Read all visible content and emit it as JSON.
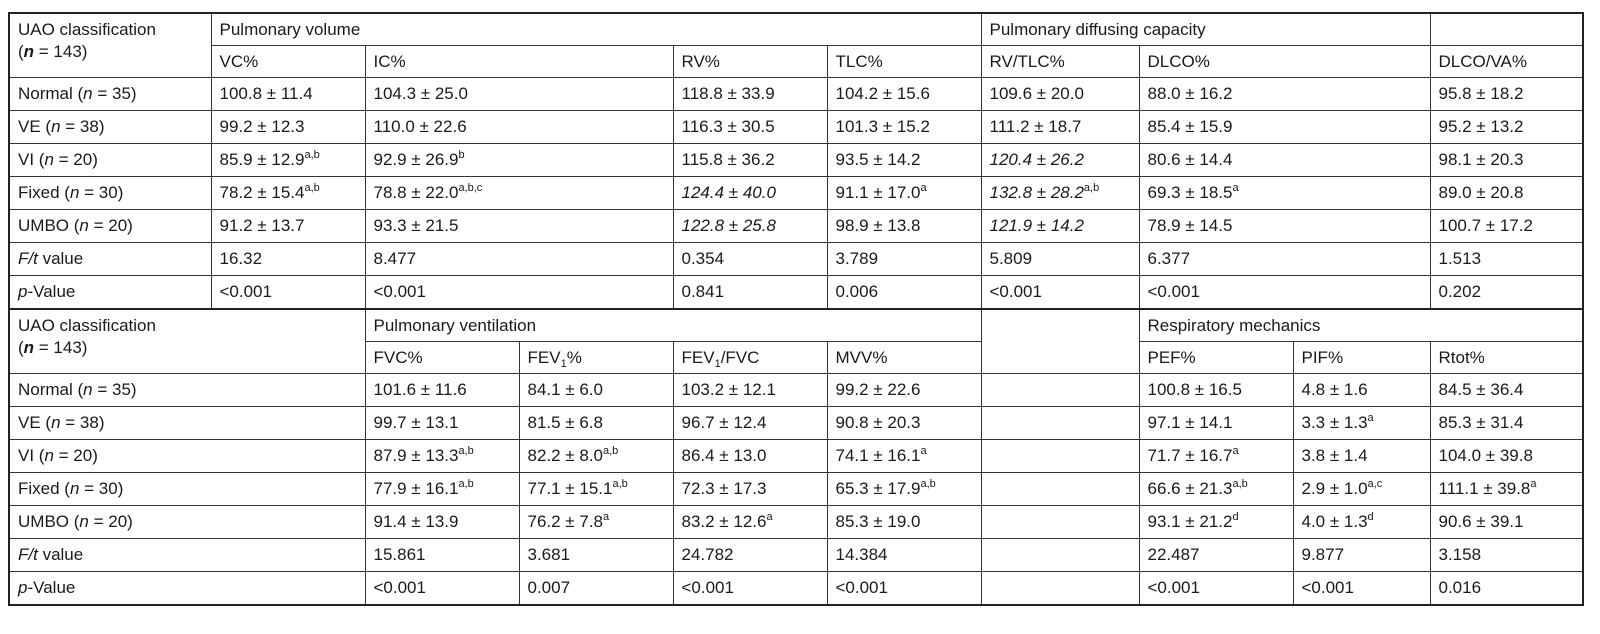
{
  "table1": {
    "corner_label": "UAO classification",
    "corner_n_pre": "(",
    "corner_n_var": "n",
    "corner_n_post": " = 143)",
    "group_volume": "Pulmonary volume",
    "group_diffusing": "Pulmonary diffusing capacity",
    "columns": [
      "VC%",
      "IC%",
      "RV%",
      "TLC%",
      "RV/TLC%",
      "DLCO%",
      "DLCO/VA%"
    ],
    "rows": [
      {
        "name": "Normal (",
        "n": "n",
        "count": " = 35)",
        "cells": [
          {
            "v": "100.8 ± 11.4"
          },
          {
            "v": "104.3 ± 25.0"
          },
          {
            "v": "118.8 ± 33.9"
          },
          {
            "v": "104.2 ± 15.6"
          },
          {
            "v": "109.6 ± 20.0"
          },
          {
            "v": "88.0 ± 16.2"
          },
          {
            "v": "95.8 ± 18.2"
          }
        ]
      },
      {
        "name": "VE (",
        "n": "n",
        "count": " = 38)",
        "cells": [
          {
            "v": "99.2 ± 12.3"
          },
          {
            "v": "110.0 ± 22.6"
          },
          {
            "v": "116.3 ± 30.5"
          },
          {
            "v": "101.3 ± 15.2"
          },
          {
            "v": "111.2 ± 18.7"
          },
          {
            "v": "85.4 ± 15.9"
          },
          {
            "v": "95.2 ± 13.2"
          }
        ]
      },
      {
        "name": "VI (",
        "n": "n",
        "count": " = 20)",
        "cells": [
          {
            "v": "85.9 ± 12.9",
            "sup": "a,b"
          },
          {
            "v": "92.9 ± 26.9",
            "sup": "b"
          },
          {
            "v": "115.8 ± 36.2"
          },
          {
            "v": "93.5 ± 14.2"
          },
          {
            "v": "120.4 ± 26.2",
            "italic": true
          },
          {
            "v": "80.6 ± 14.4"
          },
          {
            "v": "98.1 ± 20.3"
          }
        ]
      },
      {
        "name": "Fixed (",
        "n": "n",
        "count": " = 30)",
        "cells": [
          {
            "v": "78.2 ± 15.4",
            "sup": "a,b"
          },
          {
            "v": "78.8 ± 22.0",
            "sup": "a,b,c"
          },
          {
            "v": "124.4 ± 40.0",
            "italic": true
          },
          {
            "v": "91.1 ± 17.0",
            "sup": "a"
          },
          {
            "v": "132.8 ± 28.2",
            "italic": true,
            "sup": "a,b"
          },
          {
            "v": "69.3 ± 18.5",
            "sup": "a"
          },
          {
            "v": "89.0 ± 20.8"
          }
        ]
      },
      {
        "name": "UMBO (",
        "n": "n",
        "count": " = 20)",
        "cells": [
          {
            "v": "91.2 ± 13.7"
          },
          {
            "v": "93.3 ± 21.5"
          },
          {
            "v": "122.8 ± 25.8",
            "italic": true
          },
          {
            "v": "98.9 ± 13.8"
          },
          {
            "v": "121.9 ± 14.2",
            "italic": true
          },
          {
            "v": "78.9 ± 14.5"
          },
          {
            "v": "100.7 ± 17.2"
          }
        ]
      }
    ],
    "ft_label_var": "F/t",
    "ft_label_text": " value",
    "ft_values": [
      "16.32",
      "8.477",
      "0.354",
      "3.789",
      "5.809",
      "6.377",
      "1.513"
    ],
    "p_label_var": "p",
    "p_label_text": "-Value",
    "p_values": [
      "<0.001",
      "<0.001",
      "0.841",
      "0.006",
      "<0.001",
      "<0.001",
      "0.202"
    ]
  },
  "table2": {
    "corner_label": "UAO classification",
    "corner_n_pre": "(",
    "corner_n_var": "n",
    "corner_n_post": " = 143)",
    "group_ventilation": "Pulmonary ventilation",
    "group_mechanics": "Respiratory mechanics",
    "columns": {
      "fvc": "FVC%",
      "fev1_pre": "FEV",
      "fev1_sub": "1",
      "fev1_post": "%",
      "fev1fvc_pre": "FEV",
      "fev1fvc_sub": "1",
      "fev1fvc_post": "/FVC",
      "mvv": "MVV%",
      "pef": "PEF%",
      "pif": "PIF%",
      "rtot": "Rtot%"
    },
    "rows": [
      {
        "name": "Normal (",
        "n": "n",
        "count": " = 35)",
        "cells": [
          {
            "v": "101.6 ± 11.6"
          },
          {
            "v": "84.1 ± 6.0"
          },
          {
            "v": "103.2 ± 12.1"
          },
          {
            "v": "99.2 ± 22.6"
          },
          {
            "v": "100.8 ± 16.5"
          },
          {
            "v": "4.8 ± 1.6"
          },
          {
            "v": "84.5 ± 36.4"
          }
        ]
      },
      {
        "name": "VE (",
        "n": "n",
        "count": " = 38)",
        "cells": [
          {
            "v": "99.7 ± 13.1"
          },
          {
            "v": "81.5 ± 6.8"
          },
          {
            "v": "96.7 ± 12.4"
          },
          {
            "v": "90.8 ± 20.3"
          },
          {
            "v": "97.1 ± 14.1"
          },
          {
            "v": "3.3 ± 1.3",
            "sup": "a"
          },
          {
            "v": "85.3 ± 31.4"
          }
        ]
      },
      {
        "name": "VI (",
        "n": "n",
        "count": " = 20)",
        "cells": [
          {
            "v": "87.9 ± 13.3",
            "sup": "a,b"
          },
          {
            "v": "82.2 ± 8.0",
            "sup": "a,b"
          },
          {
            "v": "86.4 ± 13.0"
          },
          {
            "v": "74.1 ± 16.1",
            "sup": "a"
          },
          {
            "v": "71.7 ± 16.7",
            "sup": "a"
          },
          {
            "v": "3.8 ± 1.4"
          },
          {
            "v": "104.0 ± 39.8"
          }
        ]
      },
      {
        "name": "Fixed (",
        "n": "n",
        "count": " = 30)",
        "cells": [
          {
            "v": "77.9 ± 16.1",
            "sup": "a,b"
          },
          {
            "v": "77.1 ± 15.1",
            "sup": "a,b"
          },
          {
            "v": "72.3 ± 17.3"
          },
          {
            "v": "65.3 ± 17.9",
            "sup": "a,b"
          },
          {
            "v": "66.6 ± 21.3",
            "sup": "a,b"
          },
          {
            "v": "2.9 ± 1.0",
            "sup": "a,c"
          },
          {
            "v": "111.1 ± 39.8",
            "sup": "a"
          }
        ]
      },
      {
        "name": "UMBO (",
        "n": "n",
        "count": " = 20)",
        "cells": [
          {
            "v": "91.4 ± 13.9"
          },
          {
            "v": "76.2 ± 7.8",
            "sup": "a"
          },
          {
            "v": "83.2 ± 12.6",
            "sup": "a"
          },
          {
            "v": "85.3 ± 19.0"
          },
          {
            "v": "93.1 ± 21.2",
            "sup": "d"
          },
          {
            "v": "4.0 ± 1.3",
            "sup": "d"
          },
          {
            "v": "90.6 ± 39.1"
          }
        ]
      }
    ],
    "ft_label_var": "F/t",
    "ft_label_text": " value",
    "ft_values": [
      "15.861",
      "3.681",
      "24.782",
      "14.384",
      "22.487",
      "9.877",
      "3.158"
    ],
    "p_label_var": "p",
    "p_label_text": "-Value",
    "p_values": [
      "<0.001",
      "0.007",
      "<0.001",
      "<0.001",
      "<0.001",
      "<0.001",
      "0.016"
    ]
  }
}
